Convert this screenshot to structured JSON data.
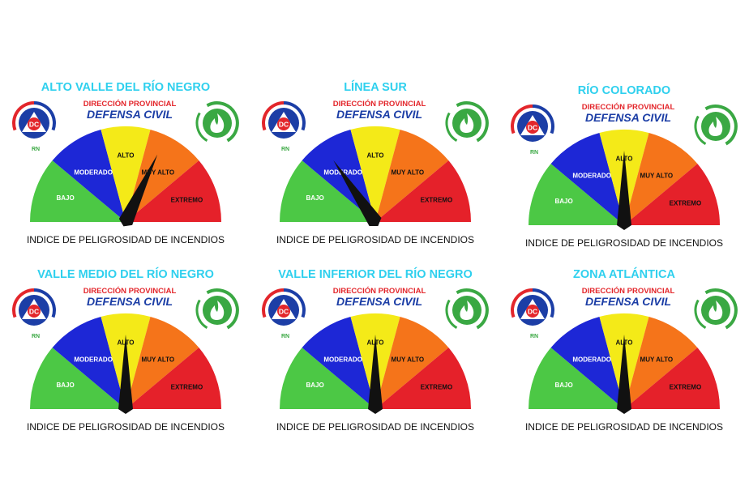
{
  "colors": {
    "title": "#2fd0ee",
    "brand_red": "#e3262b",
    "brand_blue": "#1c3ea6",
    "fire_green": "#3aa843",
    "bajo": "#4cc845",
    "moderado": "#1d27d6",
    "alto": "#f4ea18",
    "muy_alto": "#f5741a",
    "extremo": "#e5212a",
    "needle": "#111111"
  },
  "icons": [
    "defensa-civil-logo-icon",
    "fire-safety-icon"
  ],
  "panels": [
    {
      "region": "ALTO VALLE DEL RÍO NEGRO",
      "org_line1": "DIRECCIÓN PROVINCIAL",
      "org_line2": "DEFENSA CIVIL",
      "logo_text": "DC",
      "logo_sub": "RN",
      "segments": [
        "BAJO",
        "MODERADO",
        "ALTO",
        "MUY ALTO",
        "EXTREMO"
      ],
      "caption": "INDICE DE PELIGROSIDAD DE INCENDIOS",
      "needle_level": 0.64
    },
    {
      "region": "LÍNEA SUR",
      "org_line1": "DIRECCIÓN PROVINCIAL",
      "org_line2": "DEFENSA CIVIL",
      "logo_text": "DC",
      "logo_sub": "RN",
      "segments": [
        "BAJO",
        "MODERADO",
        "ALTO",
        "MUY ALTO",
        "EXTREMO"
      ],
      "caption": "INDICE DE PELIGROSIDAD DE INCENDIOS",
      "needle_level": 0.31
    },
    {
      "region": "RÍO COLORADO",
      "org_line1": "DIRECCIÓN PROVINCIAL",
      "org_line2": "DEFENSA CIVIL",
      "logo_text": "DC",
      "logo_sub": "RN",
      "segments": [
        "BAJO",
        "MODERADO",
        "ALTO",
        "MUY ALTO",
        "EXTREMO"
      ],
      "caption": "INDICE DE PELIGROSIDAD DE INCENDIOS",
      "needle_level": 0.5
    },
    {
      "region": "VALLE MEDIO DEL RÍO NEGRO",
      "org_line1": "DIRECCIÓN PROVINCIAL",
      "org_line2": "DEFENSA CIVIL",
      "logo_text": "DC",
      "logo_sub": "RN",
      "segments": [
        "BAJO",
        "MODERADO",
        "ALTO",
        "MUY ALTO",
        "EXTREMO"
      ],
      "caption": "INDICE DE PELIGROSIDAD DE INCENDIOS",
      "needle_level": 0.5
    },
    {
      "region": "VALLE INFERIOR DEL RÍO NEGRO",
      "org_line1": "DIRECCIÓN PROVINCIAL",
      "org_line2": "DEFENSA CIVIL",
      "logo_text": "DC",
      "logo_sub": "RN",
      "segments": [
        "BAJO",
        "MODERADO",
        "ALTO",
        "MUY ALTO",
        "EXTREMO"
      ],
      "caption": "INDICE DE PELIGROSIDAD DE INCENDIOS",
      "needle_level": 0.5
    },
    {
      "region": "ZONA ATLÁNTICA",
      "org_line1": "DIRECCIÓN PROVINCIAL",
      "org_line2": "DEFENSA CIVIL",
      "logo_text": "DC",
      "logo_sub": "RN",
      "segments": [
        "BAJO",
        "MODERADO",
        "ALTO",
        "MUY ALTO",
        "EXTREMO"
      ],
      "caption": "INDICE DE PELIGROSIDAD DE INCENDIOS",
      "needle_level": 0.5
    }
  ]
}
